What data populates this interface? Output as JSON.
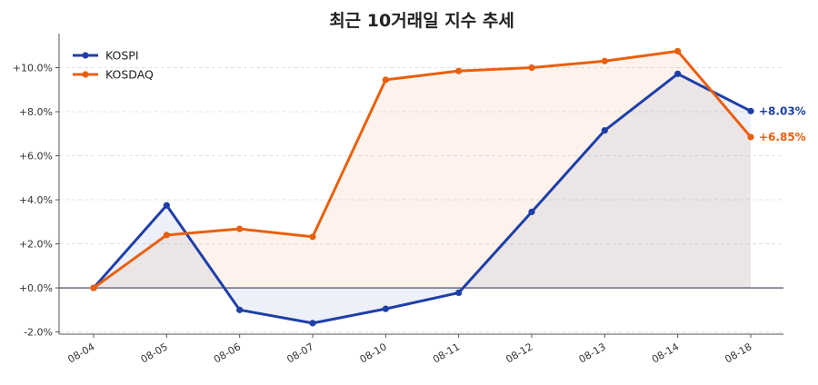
{
  "chart_data": {
    "type": "line",
    "title": "최근 10거래일 지수 추세",
    "xlabel": "",
    "ylabel": "",
    "categories": [
      "08-04",
      "08-05",
      "08-06",
      "08-07",
      "08-10",
      "08-11",
      "08-12",
      "08-13",
      "08-14",
      "08-18"
    ],
    "yticks": [
      "-2.0%",
      "+0.0%",
      "+2.0%",
      "+4.0%",
      "+6.0%",
      "+8.0%",
      "+10.0%"
    ],
    "ylim": [
      -2.1,
      11.3
    ],
    "grid": true,
    "legend": "top-left",
    "series": [
      {
        "name": "KOSPI",
        "color": "#1f3fa8",
        "values": [
          0.0,
          3.75,
          -1.0,
          -1.6,
          -0.95,
          -0.22,
          3.45,
          7.15,
          9.72,
          8.03
        ],
        "end_label": "+8.03%"
      },
      {
        "name": "KOSDAQ",
        "color": "#e8600f",
        "values": [
          0.0,
          2.4,
          2.68,
          2.32,
          9.45,
          9.85,
          10.0,
          10.3,
          10.75,
          6.85
        ],
        "end_label": "+6.85%"
      }
    ]
  }
}
